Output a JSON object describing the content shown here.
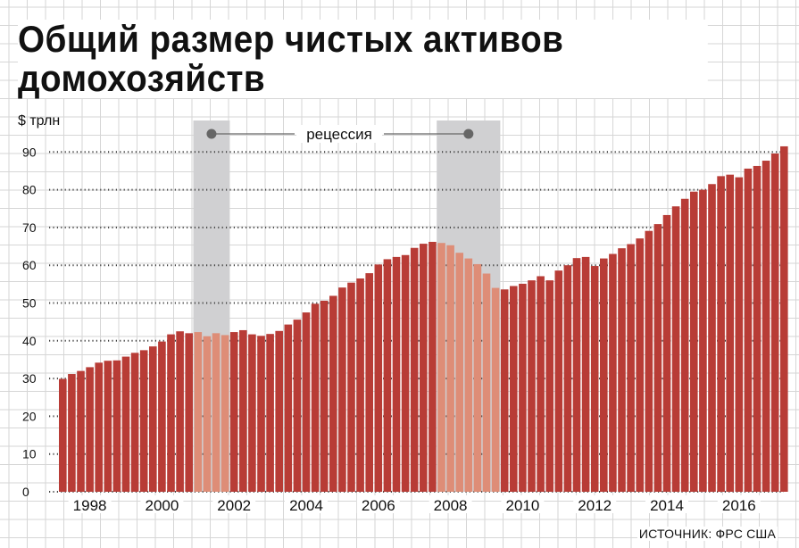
{
  "title_lines": [
    "Общий размер чистых активов",
    "домохозяйств"
  ],
  "source": "ИСТОЧНИК: ФРС США",
  "recession_label": "рецессия",
  "colors": {
    "bar": "#b83c36",
    "bar_recession": "#de8d77",
    "recession_band": "#d0d0d2",
    "grid": "#d6d6d6",
    "dots": "#444444"
  },
  "chart_data": {
    "type": "bar",
    "ylabel": "$ трлн",
    "ylim": [
      0,
      95
    ],
    "y_ticks": [
      0,
      10,
      20,
      30,
      40,
      50,
      60,
      70,
      80,
      90
    ],
    "x_tick_labels": [
      "1998",
      "2000",
      "2002",
      "2004",
      "2006",
      "2008",
      "2010",
      "2012",
      "2014",
      "2016"
    ],
    "x_start": "1997-Q2",
    "frequency": "quarterly",
    "recessions": [
      {
        "start": "2001-Q1",
        "end": "2001-Q4"
      },
      {
        "start": "2007-Q4",
        "end": "2009-Q2"
      }
    ],
    "values": [
      29.9,
      31.2,
      32.0,
      33.0,
      34.2,
      34.7,
      34.8,
      35.8,
      36.8,
      37.5,
      38.5,
      39.8,
      41.7,
      42.5,
      42.0,
      42.3,
      41.2,
      42.0,
      41.5,
      42.3,
      42.8,
      41.7,
      41.3,
      41.8,
      42.6,
      44.3,
      45.6,
      47.5,
      49.8,
      50.6,
      51.9,
      54.1,
      55.4,
      56.5,
      57.9,
      60.2,
      61.6,
      62.2,
      62.7,
      64.6,
      65.7,
      66.2,
      65.9,
      65.3,
      63.3,
      61.8,
      60.3,
      57.8,
      54.0,
      53.6,
      54.5,
      55.1,
      56.0,
      57.1,
      56.0,
      58.6,
      60.0,
      61.9,
      62.2,
      59.8,
      61.8,
      63.0,
      64.5,
      65.6,
      67.1,
      69.1,
      70.9,
      73.3,
      75.6,
      77.6,
      79.5,
      80.0,
      81.5,
      83.6,
      84.0,
      83.3,
      85.6,
      86.3,
      87.7,
      89.6,
      91.5
    ]
  }
}
